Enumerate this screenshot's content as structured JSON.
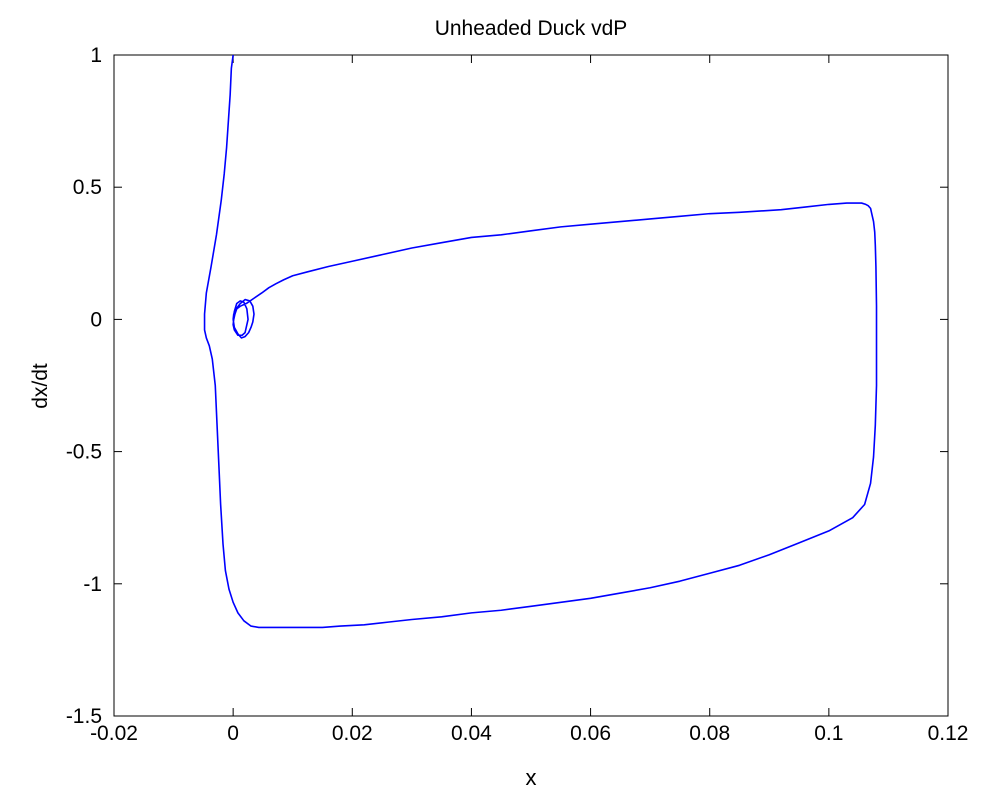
{
  "chart_data": {
    "type": "line",
    "title": "Unheaded Duck vdP",
    "xlabel": "x",
    "ylabel": "dx/dt",
    "xlim": [
      -0.02,
      0.12
    ],
    "ylim": [
      -1.5,
      1
    ],
    "xticks": [
      -0.02,
      0,
      0.02,
      0.04,
      0.06,
      0.08,
      0.1,
      0.12
    ],
    "yticks": [
      -1.5,
      -1,
      -0.5,
      0,
      0.5,
      1
    ],
    "xtick_labels": [
      "-0.02",
      "0",
      "0.02",
      "0.04",
      "0.06",
      "0.08",
      "0.1",
      "0.12"
    ],
    "ytick_labels": [
      "-1.5",
      "-1",
      "-0.5",
      "0",
      "0.5",
      "1"
    ],
    "grid": false,
    "legend": null,
    "series": [
      {
        "color": "#0000ff",
        "x": [
          0.0,
          -0.0003,
          -0.0005,
          -0.0008,
          -0.0011,
          -0.0015,
          -0.002,
          -0.0028,
          -0.0037,
          -0.0045,
          -0.0048,
          -0.0048,
          -0.0045,
          -0.004,
          -0.0035,
          -0.003,
          -0.0027,
          -0.0024,
          -0.0021,
          -0.0017,
          -0.0013,
          -0.0007,
          0.0,
          0.0008,
          0.0018,
          0.003,
          0.0043,
          0.0057,
          0.0073,
          0.009,
          0.0108,
          0.0125,
          0.015,
          0.018,
          0.022,
          0.026,
          0.03,
          0.035,
          0.04,
          0.045,
          0.05,
          0.055,
          0.06,
          0.065,
          0.07,
          0.075,
          0.08,
          0.085,
          0.09,
          0.095,
          0.1,
          0.104,
          0.106,
          0.107,
          0.1075,
          0.1078,
          0.108,
          0.108,
          0.108,
          0.1079,
          0.1078,
          0.1077,
          0.1075,
          0.1072,
          0.107,
          0.1066,
          0.1062,
          0.1055,
          0.1045,
          0.103,
          0.1,
          0.096,
          0.092,
          0.085,
          0.08,
          0.075,
          0.07,
          0.065,
          0.06,
          0.055,
          0.05,
          0.045,
          0.04,
          0.035,
          0.03,
          0.025,
          0.02,
          0.016,
          0.0125,
          0.01,
          0.0085,
          0.0072,
          0.006,
          0.0048,
          0.0035,
          0.0022,
          0.0012,
          0.0006,
          0.0003,
          0.0001,
          0.0,
          0.0002,
          0.0008,
          0.0015,
          0.002,
          0.0025,
          0.0023,
          0.0018,
          0.0012,
          0.0006,
          0.0002,
          0.0,
          0.0002,
          0.0008,
          0.0014,
          0.002,
          0.0026,
          0.003,
          0.0033,
          0.0035,
          0.0033,
          0.0028,
          0.002,
          0.0012,
          0.0005,
          0.0001,
          0.0
        ],
        "y": [
          1.0,
          0.95,
          0.85,
          0.75,
          0.65,
          0.55,
          0.45,
          0.32,
          0.2,
          0.1,
          0.02,
          -0.04,
          -0.07,
          -0.1,
          -0.15,
          -0.25,
          -0.4,
          -0.55,
          -0.7,
          -0.85,
          -0.95,
          -1.02,
          -1.07,
          -1.11,
          -1.14,
          -1.16,
          -1.165,
          -1.165,
          -1.165,
          -1.165,
          -1.165,
          -1.165,
          -1.165,
          -1.16,
          -1.155,
          -1.145,
          -1.135,
          -1.125,
          -1.11,
          -1.1,
          -1.085,
          -1.07,
          -1.055,
          -1.035,
          -1.015,
          -0.99,
          -0.96,
          -0.93,
          -0.89,
          -0.845,
          -0.8,
          -0.75,
          -0.7,
          -0.62,
          -0.52,
          -0.4,
          -0.25,
          -0.1,
          0.05,
          0.2,
          0.28,
          0.33,
          0.37,
          0.4,
          0.42,
          0.43,
          0.435,
          0.44,
          0.44,
          0.44,
          0.435,
          0.425,
          0.415,
          0.405,
          0.4,
          0.39,
          0.38,
          0.37,
          0.36,
          0.35,
          0.335,
          0.32,
          0.31,
          0.29,
          0.27,
          0.245,
          0.22,
          0.2,
          0.18,
          0.165,
          0.15,
          0.135,
          0.12,
          0.1,
          0.08,
          0.06,
          0.05,
          0.04,
          0.02,
          0.0,
          -0.02,
          -0.04,
          -0.06,
          -0.06,
          -0.05,
          0.0,
          0.04,
          0.065,
          0.07,
          0.06,
          0.03,
          0.0,
          -0.03,
          -0.055,
          -0.07,
          -0.065,
          -0.05,
          -0.03,
          -0.01,
          0.02,
          0.05,
          0.07,
          0.075,
          0.06,
          0.04,
          0.02,
          0.0
        ]
      }
    ]
  }
}
